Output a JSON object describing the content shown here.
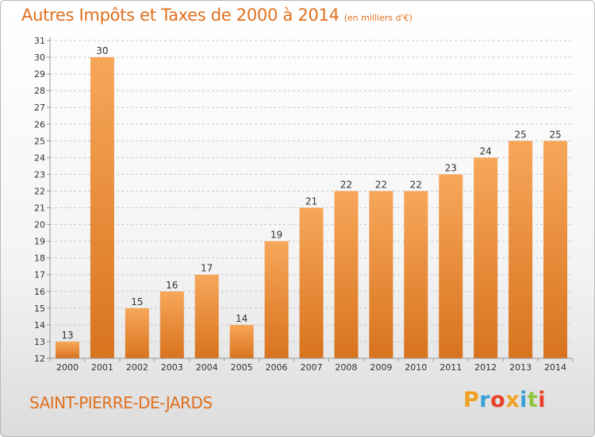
{
  "title": "Autres Impôts et Taxes de 2000 à 2014",
  "unit": "(en milliers d'€)",
  "commune": "SAINT-PIERRE-DE-JARDS",
  "logo": {
    "text": "Proxiti",
    "letters": [
      {
        "ch": "P",
        "color": "#f0a020"
      },
      {
        "ch": "r",
        "color": "#3aa0d8"
      },
      {
        "ch": "o",
        "color": "#e8402a"
      },
      {
        "ch": "x",
        "color": "#f0a020"
      },
      {
        "ch": "i",
        "color": "#3aa0d8"
      },
      {
        "ch": "t",
        "color": "#8cc63e"
      },
      {
        "ch": "i",
        "color": "#e8402a"
      }
    ]
  },
  "colors": {
    "accent": "#e0701e",
    "bar_light": "#f7a75a",
    "bar_dark": "#d8731e",
    "grid": "#c8c8c8",
    "axis": "#999999",
    "tick_text": "#333333"
  },
  "chart_data": {
    "type": "bar",
    "categories": [
      "2000",
      "2001",
      "2002",
      "2003",
      "2004",
      "2005",
      "2006",
      "2007",
      "2008",
      "2009",
      "2010",
      "2011",
      "2012",
      "2013",
      "2014"
    ],
    "values": [
      13,
      30,
      15,
      16,
      17,
      14,
      19,
      21,
      22,
      22,
      22,
      23,
      24,
      25,
      25
    ],
    "ylim": [
      12,
      31
    ],
    "yticks": [
      12,
      13,
      14,
      15,
      16,
      17,
      18,
      19,
      20,
      21,
      22,
      23,
      24,
      25,
      26,
      27,
      28,
      29,
      30,
      31
    ],
    "grid": "horizontal dashed",
    "data_labels": true,
    "legend": "none"
  }
}
